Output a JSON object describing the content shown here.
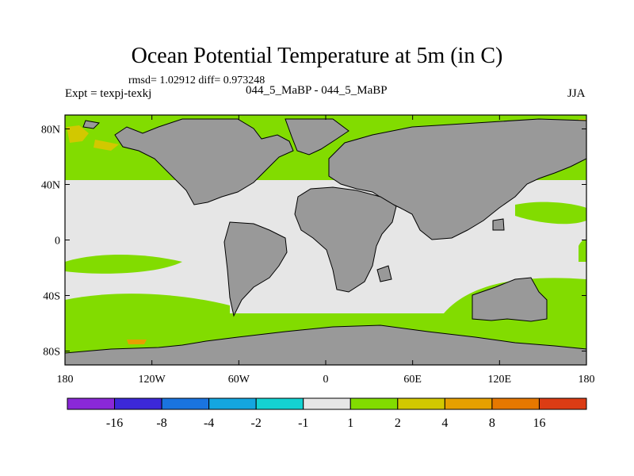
{
  "title": "Ocean Potential Temperature at 5m (in C)",
  "stats": "rmsd= 1.02912 diff= 0.973248",
  "expt": "Expt = texpj-texkj",
  "case_label": "044_5_MaBP - 044_5_MaBP",
  "season": "JJA",
  "map": {
    "lat_ticks": [
      {
        "value": 80,
        "label": "80N"
      },
      {
        "value": 40,
        "label": "40N"
      },
      {
        "value": 0,
        "label": "0"
      },
      {
        "value": -40,
        "label": "40S"
      },
      {
        "value": -80,
        "label": "80S"
      }
    ],
    "lon_ticks": [
      {
        "value": -180,
        "label": "180"
      },
      {
        "value": -120,
        "label": "120W"
      },
      {
        "value": -60,
        "label": "60W"
      },
      {
        "value": 0,
        "label": "0"
      },
      {
        "value": 60,
        "label": "60E"
      },
      {
        "value": 120,
        "label": "120E"
      },
      {
        "value": 180,
        "label": "180"
      }
    ],
    "land_color": "#999999",
    "background_color": "#e6e6e6"
  },
  "colorbar": {
    "colors": [
      "#8a28d8",
      "#3c28d8",
      "#1a74e0",
      "#14a6e0",
      "#14d2d2",
      "#e6e6e6",
      "#82dc00",
      "#d2c800",
      "#e6a000",
      "#e67800",
      "#dc3c14"
    ],
    "labels": [
      "-16",
      "-8",
      "-4",
      "-2",
      "-1",
      "1",
      "2",
      "4",
      "8",
      "16"
    ]
  }
}
